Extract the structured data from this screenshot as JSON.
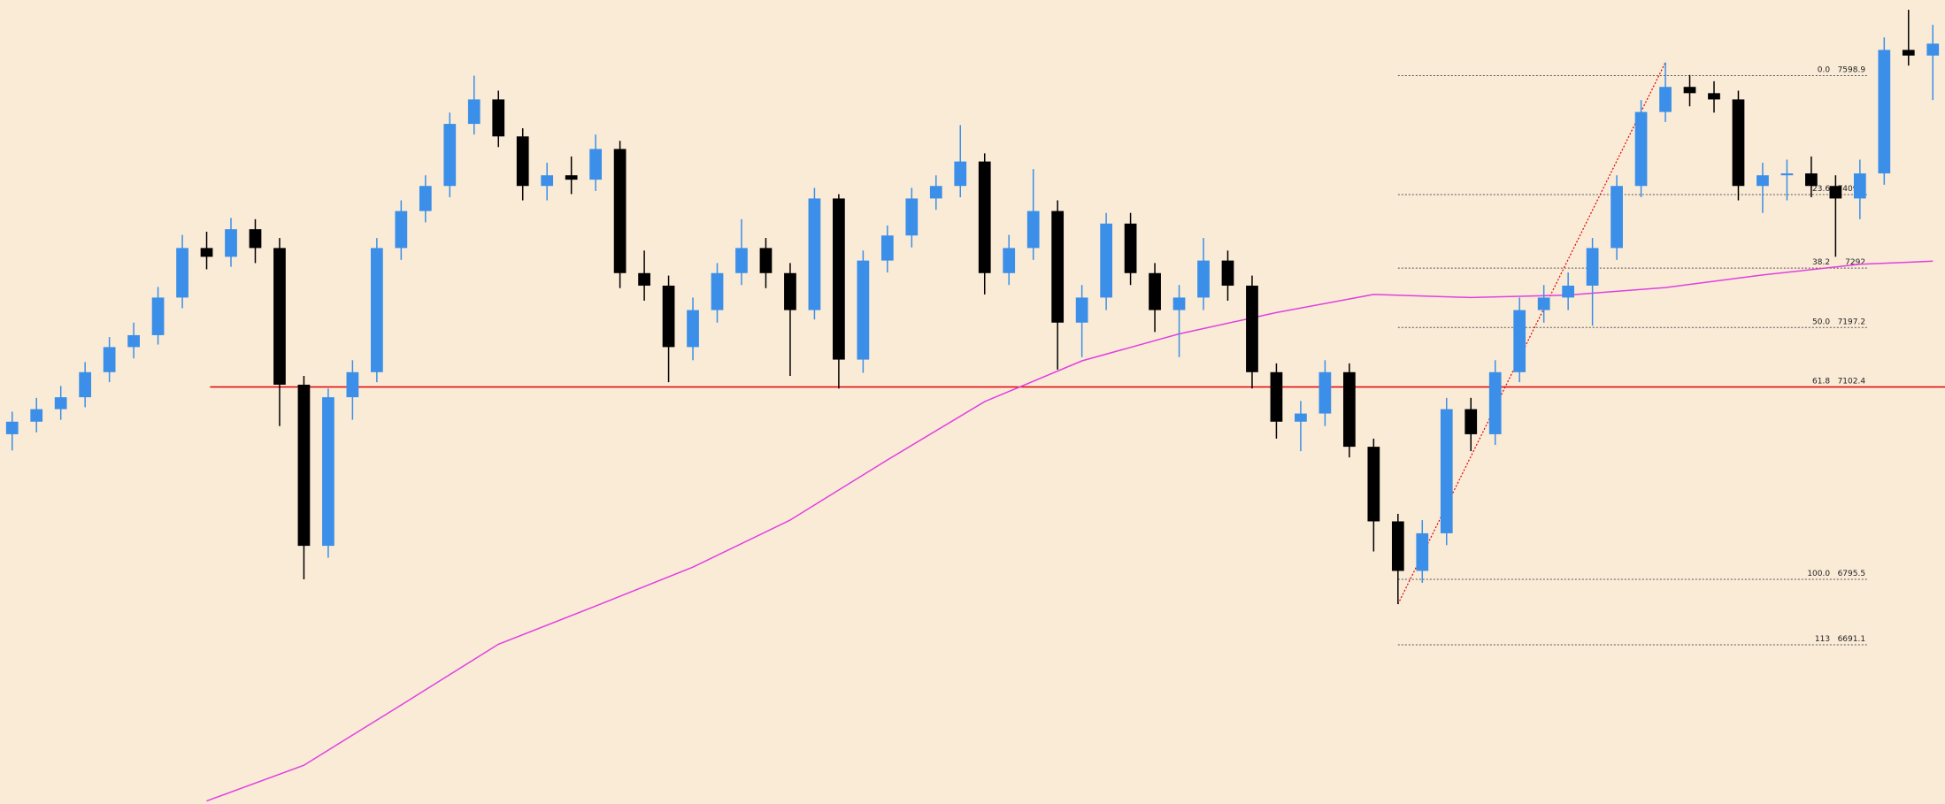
{
  "chart_data": {
    "type": "candlestick",
    "up_color": "#3b8fe8",
    "down_color": "#000000",
    "ylim": [
      6437.2,
      7719.6
    ],
    "open": [
      7027,
      7047,
      7067,
      7086,
      7126,
      7166,
      7185,
      7245,
      7324,
      7310,
      7354,
      7324,
      7106,
      6849,
      7086,
      7126,
      7324,
      7383,
      7423,
      7522,
      7561,
      7502,
      7423,
      7440,
      7433,
      7482,
      7284,
      7264,
      7166,
      7225,
      7284,
      7324,
      7284,
      7225,
      7403,
      7146,
      7304,
      7344,
      7403,
      7423,
      7462,
      7284,
      7324,
      7383,
      7205,
      7245,
      7363,
      7284,
      7225,
      7245,
      7304,
      7264,
      7126,
      7047,
      7060,
      7126,
      7007,
      6888,
      6809,
      6869,
      7067,
      7027,
      7126,
      7225,
      7245,
      7264,
      7324,
      7423,
      7541,
      7581,
      7571,
      7561,
      7423,
      7440,
      7443,
      7423,
      7403,
      7443,
      7640,
      7631
    ],
    "high": [
      7063,
      7085,
      7104,
      7142,
      7182,
      7205,
      7262,
      7345,
      7350,
      7372,
      7370,
      7340,
      7120,
      7100,
      7145,
      7340,
      7400,
      7440,
      7540,
      7598.9,
      7575,
      7515,
      7460,
      7470,
      7505,
      7495,
      7320,
      7280,
      7245,
      7300,
      7370,
      7340,
      7300,
      7420,
      7410,
      7320,
      7360,
      7420,
      7440,
      7520,
      7475,
      7345,
      7450,
      7400,
      7265,
      7380,
      7380,
      7300,
      7265,
      7340,
      7320,
      7280,
      7140,
      7080,
      7145,
      7140,
      7020,
      6900,
      6890,
      7085,
      7085,
      7145,
      7245,
      7265,
      7285,
      7340,
      7440,
      7560,
      7620,
      7600,
      7590,
      7575,
      7460,
      7465,
      7470,
      7440,
      7465,
      7660,
      7704,
      7680
    ],
    "low": [
      7001,
      7030,
      7050,
      7070,
      7110,
      7148,
      7170,
      7228,
      7290,
      7294,
      7300,
      7040,
      6795.5,
      6830,
      7050,
      7110,
      7305,
      7365,
      7405,
      7505,
      7485,
      7400,
      7400,
      7410,
      7415,
      7260,
      7240,
      7110,
      7145,
      7205,
      7265,
      7260,
      7120,
      7210,
      7100,
      7125,
      7285,
      7325,
      7385,
      7405,
      7250,
      7265,
      7305,
      7130,
      7150,
      7225,
      7265,
      7190,
      7150,
      7225,
      7240,
      7100,
      7020,
      7000,
      7040,
      6990,
      6840,
      6756,
      6790,
      6850,
      7000,
      7010,
      7110,
      7205,
      7225,
      7200,
      7305,
      7405,
      7525,
      7550,
      7540,
      7400,
      7380,
      7400,
      7405,
      7310,
      7370,
      7425,
      7615,
      7560
    ],
    "close": [
      7047,
      7067,
      7086,
      7126,
      7166,
      7185,
      7245,
      7324,
      7310,
      7354,
      7324,
      7106,
      6849,
      7086,
      7126,
      7324,
      7383,
      7423,
      7522,
      7561,
      7502,
      7423,
      7440,
      7433,
      7482,
      7284,
      7264,
      7166,
      7225,
      7284,
      7324,
      7284,
      7225,
      7403,
      7146,
      7304,
      7344,
      7403,
      7423,
      7462,
      7284,
      7324,
      7383,
      7205,
      7245,
      7363,
      7284,
      7225,
      7245,
      7304,
      7264,
      7126,
      7047,
      7060,
      7126,
      7007,
      6888,
      6809,
      6869,
      7067,
      7027,
      7126,
      7225,
      7245,
      7264,
      7324,
      7423,
      7541,
      7581,
      7571,
      7561,
      7423,
      7440,
      7443,
      7423,
      7403,
      7443,
      7640,
      7631,
      7650
    ],
    "ma": {
      "color": "#e040e0",
      "x": [
        8,
        12,
        16,
        20,
        24,
        28,
        32,
        36,
        40,
        44,
        48,
        52,
        56,
        60,
        64,
        68,
        72,
        76,
        79
      ],
      "values": [
        6442,
        6499,
        6595,
        6692,
        6753,
        6815,
        6890,
        6986,
        7079,
        7144,
        7187,
        7221,
        7250,
        7245,
        7249,
        7261,
        7281,
        7298,
        7303
      ]
    },
    "trend": {
      "color": "#e00000"
    },
    "fib": {
      "levels": [
        {
          "ratio": "0.0",
          "value": 7598.9,
          "color": "#555555",
          "line": "dotted"
        },
        {
          "ratio": "23.6",
          "value": 7409.3,
          "color": "#555555",
          "line": "dotted"
        },
        {
          "ratio": "38.2",
          "value": 7292.0,
          "color": "#555555",
          "line": "dotted"
        },
        {
          "ratio": "50.0",
          "value": 7197.2,
          "color": "#555555",
          "line": "dotted"
        },
        {
          "ratio": "61.8",
          "value": 7102.4,
          "color": "#e00000",
          "line": "solid"
        },
        {
          "ratio": "100.0",
          "value": 6795.5,
          "color": "#555555",
          "line": "dotted"
        },
        {
          "ratio": "113",
          "value": 6691.1,
          "color": "#555555",
          "line": "dotted"
        }
      ]
    }
  }
}
